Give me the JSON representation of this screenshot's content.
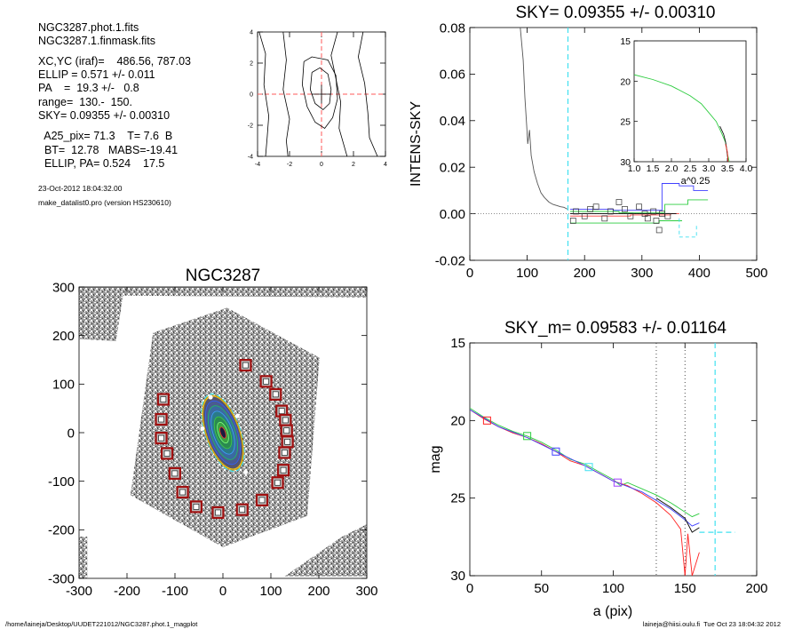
{
  "info_panel": {
    "lines": [
      "NGC3287.phot.1.fits",
      "NGC3287.1.finmask.fits",
      "XC,YC (iraf)=    486.56, 787.03",
      "ELLIP = 0.571 +/- 0.011",
      "PA    =  19.3 +/-   0.8",
      "range=  130.-  150.",
      "SKY= 0.09355 +/- 0.00310",
      "  A25_pix= 71.3    T= 7.6  B",
      "  BT=  12.78   MABS=-19.41",
      "  ELLIP, PA= 0.524    17.5"
    ],
    "date": "23-Oct-2012 18:04:32.00",
    "program": "make_datalist0.pro (version HS230610)"
  },
  "footer": {
    "left": "/home/laineja/Desktop/UUDET221012/NGC3287.phot.1_magplot",
    "right": "laineja@hiisi.oulu.fi  Tue Oct 23 18:04:32 2012"
  },
  "colors": {
    "axis": "#000000",
    "red_dash": "#ff5a5a",
    "cyan_dash": "#40e0f0",
    "green": "#2ecc40",
    "blue": "#4040ff",
    "red": "#ff2020",
    "violet": "#a040ff",
    "gray_curve": "#555555",
    "mask_box": "#a01010"
  },
  "chart_data": [
    {
      "id": "contour",
      "type": "contour",
      "title": "",
      "xlim": [
        -4,
        4
      ],
      "ylim": [
        -4,
        4
      ],
      "x_ticks": [
        "-4",
        "-2",
        "0",
        "2",
        "4"
      ],
      "y_ticks": [
        "-4",
        "-2",
        "0",
        "2",
        "4"
      ],
      "center": [
        0,
        0
      ],
      "contours": [
        [
          [
            -3.9,
            4
          ],
          [
            -3.5,
            2.6
          ],
          [
            -3.6,
            0.6
          ],
          [
            -3.3,
            -1.4
          ],
          [
            -3.4,
            -2.8
          ],
          [
            -3.5,
            -4
          ]
        ],
        [
          [
            -2.4,
            4
          ],
          [
            -2.2,
            2.2
          ],
          [
            -2.4,
            0.3
          ],
          [
            -2.0,
            -1.6
          ],
          [
            -2.2,
            -3.0
          ],
          [
            -2.1,
            -4
          ]
        ],
        [
          [
            1.0,
            4
          ],
          [
            0.6,
            2.5
          ],
          [
            0.9,
            1.0
          ],
          [
            1.2,
            -0.5
          ],
          [
            1.1,
            -2.2
          ],
          [
            1.6,
            -4
          ]
        ],
        [
          [
            2.6,
            4
          ],
          [
            2.3,
            2.4
          ],
          [
            2.7,
            0.7
          ],
          [
            2.9,
            -1.2
          ],
          [
            3.0,
            -2.8
          ],
          [
            3.5,
            -4
          ]
        ],
        [
          [
            -1.1,
            2.1
          ],
          [
            -0.6,
            2.4
          ],
          [
            0.4,
            2.2
          ],
          [
            0.9,
            1.2
          ],
          [
            1.0,
            -0.3
          ],
          [
            0.7,
            -1.5
          ],
          [
            0.2,
            -2.2
          ],
          [
            -0.4,
            -1.8
          ],
          [
            -0.9,
            -0.8
          ],
          [
            -1.2,
            0.6
          ],
          [
            -1.1,
            2.1
          ]
        ],
        [
          [
            -0.6,
            1.4
          ],
          [
            -0.1,
            1.7
          ],
          [
            0.4,
            1.3
          ],
          [
            0.6,
            0.3
          ],
          [
            0.5,
            -0.6
          ],
          [
            0.1,
            -1.0
          ],
          [
            -0.4,
            -0.6
          ],
          [
            -0.7,
            0.3
          ],
          [
            -0.6,
            1.4
          ]
        ]
      ]
    },
    {
      "id": "sky",
      "type": "line",
      "title": "SKY= 0.09355 +/- 0.00310",
      "xlabel": "",
      "ylabel": "INTENS-SKY",
      "xlim": [
        0,
        500
      ],
      "ylim": [
        -0.02,
        0.08
      ],
      "x_ticks": [
        "0",
        "100",
        "200",
        "300",
        "400",
        "500"
      ],
      "y_ticks": [
        "-0.02",
        "0.00",
        "0.02",
        "0.04",
        "0.06",
        "0.08"
      ],
      "x_tick_values": [
        0,
        100,
        200,
        300,
        400,
        500
      ],
      "y_tick_values": [
        -0.02,
        0,
        0.02,
        0.04,
        0.06,
        0.08
      ],
      "zero_line": 0,
      "vline": 171,
      "profile": [
        [
          88,
          0.08
        ],
        [
          93,
          0.066
        ],
        [
          96,
          0.05
        ],
        [
          99,
          0.038
        ],
        [
          101,
          0.03
        ],
        [
          104,
          0.036
        ],
        [
          107,
          0.025
        ],
        [
          112,
          0.018
        ],
        [
          118,
          0.013
        ],
        [
          124,
          0.009
        ],
        [
          130,
          0.007
        ],
        [
          138,
          0.005
        ],
        [
          145,
          0.004
        ],
        [
          152,
          0.0035
        ],
        [
          158,
          0.003
        ],
        [
          164,
          0.0028
        ],
        [
          170,
          0.002
        ]
      ],
      "series": [
        {
          "name": "",
          "color": "#4040ff",
          "points": [
            [
              175,
              0.002
            ],
            [
              250,
              0.002
            ],
            [
              250,
              0.0015
            ],
            [
              335,
              0.0015
            ],
            [
              335,
              0.013
            ],
            [
              365,
              0.013
            ],
            [
              365,
              0.012
            ],
            [
              390,
              0.012
            ],
            [
              390,
              0.01
            ],
            [
              415,
              0.01
            ]
          ]
        },
        {
          "name": "",
          "color": "#2ecc40",
          "points": [
            [
              175,
              0.001
            ],
            [
              260,
              0.001
            ],
            [
              260,
              0.0005
            ],
            [
              340,
              0.0005
            ],
            [
              340,
              0.004
            ],
            [
              380,
              0.004
            ],
            [
              380,
              0.006
            ],
            [
              415,
              0.006
            ]
          ]
        },
        {
          "name": "",
          "color": "#ff4040",
          "points": [
            [
              175,
              -0.001
            ],
            [
              280,
              -0.001
            ],
            [
              280,
              -0.0005
            ],
            [
              350,
              -0.0005
            ],
            [
              350,
              0.0
            ],
            [
              365,
              0.0
            ]
          ]
        },
        {
          "name": "",
          "color": "#2ecc40",
          "points": [
            [
              175,
              -0.004
            ],
            [
              330,
              -0.004
            ],
            [
              330,
              -0.003
            ],
            [
              370,
              -0.003
            ]
          ]
        },
        {
          "name": "",
          "color": "#000000",
          "points": [
            [
              175,
              0.0
            ],
            [
              360,
              0.0
            ]
          ]
        },
        {
          "name": "",
          "color": "#40e0f0",
          "dashed": true,
          "points": [
            [
              365,
              -0.002
            ],
            [
              365,
              -0.01
            ],
            [
              395,
              -0.01
            ],
            [
              395,
              -0.005
            ]
          ]
        }
      ],
      "squares": [
        [
          185,
          0.001
        ],
        [
          200,
          -0.001
        ],
        [
          210,
          0.002
        ],
        [
          220,
          0.003
        ],
        [
          235,
          -0.002
        ],
        [
          245,
          0.001
        ],
        [
          260,
          0.005
        ],
        [
          270,
          0.002
        ],
        [
          280,
          -0.001
        ],
        [
          295,
          0.003
        ],
        [
          305,
          0.0
        ],
        [
          310,
          -0.002
        ],
        [
          320,
          0.001
        ],
        [
          325,
          -0.003
        ],
        [
          330,
          -0.007
        ],
        [
          335,
          0.0
        ],
        [
          345,
          -0.001
        ],
        [
          180,
          -0.003
        ]
      ],
      "inset": {
        "xlim": [
          1.0,
          4.0
        ],
        "ylim": [
          15,
          30
        ],
        "x_ticks": [
          "1.0",
          "1.5",
          "2.0",
          "2.5",
          "3.0",
          "3.5",
          "4.0"
        ],
        "y_ticks": [
          "15",
          "20",
          "25",
          "30"
        ],
        "xlabel": "a^0.25",
        "curve": [
          [
            1.0,
            19.2
          ],
          [
            1.5,
            19.8
          ],
          [
            2.0,
            20.6
          ],
          [
            2.5,
            21.8
          ],
          [
            2.8,
            22.8
          ],
          [
            3.0,
            23.9
          ],
          [
            3.2,
            25.0
          ],
          [
            3.35,
            26.5
          ],
          [
            3.45,
            27.6
          ],
          [
            3.5,
            29.0
          ],
          [
            3.55,
            30
          ]
        ]
      }
    },
    {
      "id": "image",
      "type": "image",
      "title": "NGC3287",
      "xlim": [
        -350,
        350
      ],
      "ylim": [
        -350,
        350
      ],
      "x_ticks": [
        "-300",
        "-200",
        "-100",
        "0",
        "100",
        "200",
        "300"
      ],
      "y_ticks": [
        "-300",
        "-200",
        "-100",
        "0",
        "100",
        "200",
        "300"
      ],
      "tick_values": [
        -300,
        -200,
        -100,
        0,
        100,
        200,
        300
      ],
      "galaxy": {
        "center": [
          0,
          0
        ],
        "semi_major": 88,
        "axis_ratio": 0.43,
        "pa_deg": 19.3
      },
      "mask_boxes": [
        [
          55,
          162
        ],
        [
          105,
          123
        ],
        [
          128,
          92
        ],
        [
          143,
          52
        ],
        [
          152,
          30
        ],
        [
          155,
          5
        ],
        [
          157,
          -22
        ],
        [
          150,
          -48
        ],
        [
          147,
          -90
        ],
        [
          133,
          -120
        ],
        [
          95,
          -162
        ],
        [
          47,
          -185
        ],
        [
          -12,
          -192
        ],
        [
          -65,
          -178
        ],
        [
          -98,
          -143
        ],
        [
          -117,
          -98
        ],
        [
          -136,
          -50
        ],
        [
          -150,
          -13
        ],
        [
          -150,
          32
        ],
        [
          -145,
          80
        ]
      ]
    },
    {
      "id": "mag",
      "type": "line",
      "title": "SKY_m=  0.09583 +/- 0.01164",
      "xlabel": "a (pix)",
      "ylabel": "mag",
      "xlim": [
        0,
        200
      ],
      "ylim": [
        30,
        15
      ],
      "x_ticks": [
        "0",
        "50",
        "100",
        "150",
        "200"
      ],
      "y_ticks": [
        "15",
        "20",
        "25",
        "30"
      ],
      "x_tick_values": [
        0,
        50,
        100,
        150,
        200
      ],
      "y_tick_values": [
        15,
        20,
        25,
        30
      ],
      "vlines_dotted": [
        130,
        150
      ],
      "vline_cyan": 171,
      "series": [
        {
          "name": "",
          "color": "#2ecc40",
          "points": [
            [
              0,
              19.2
            ],
            [
              10,
              19.8
            ],
            [
              20,
              20.3
            ],
            [
              30,
              20.7
            ],
            [
              40,
              21.0
            ],
            [
              50,
              21.4
            ],
            [
              60,
              21.9
            ],
            [
              70,
              22.5
            ],
            [
              80,
              22.8
            ],
            [
              90,
              23.3
            ],
            [
              100,
              23.8
            ],
            [
              105,
              24.2
            ],
            [
              110,
              24.0
            ],
            [
              120,
              24.4
            ],
            [
              130,
              24.8
            ],
            [
              140,
              25.3
            ],
            [
              145,
              25.6
            ],
            [
              150,
              25.9
            ],
            [
              155,
              26.2
            ],
            [
              160,
              26.0
            ]
          ]
        },
        {
          "name": "",
          "color": "#ff2020",
          "points": [
            [
              0,
              19.3
            ],
            [
              10,
              19.9
            ],
            [
              20,
              20.4
            ],
            [
              30,
              20.8
            ],
            [
              40,
              21.1
            ],
            [
              50,
              21.5
            ],
            [
              60,
              22.0
            ],
            [
              70,
              22.6
            ],
            [
              80,
              22.9
            ],
            [
              90,
              23.4
            ],
            [
              100,
              23.9
            ],
            [
              110,
              24.2
            ],
            [
              120,
              24.7
            ],
            [
              130,
              25.3
            ],
            [
              140,
              26.1
            ],
            [
              147,
              27.0
            ],
            [
              150,
              30
            ],
            [
              152,
              27.3
            ],
            [
              155,
              30
            ],
            [
              160,
              28.5
            ]
          ]
        },
        {
          "name": "",
          "color": "#4040ff",
          "points": [
            [
              0,
              19.3
            ],
            [
              20,
              20.4
            ],
            [
              40,
              21.1
            ],
            [
              60,
              22.0
            ],
            [
              80,
              22.9
            ],
            [
              100,
              23.9
            ],
            [
              120,
              24.6
            ],
            [
              140,
              25.7
            ],
            [
              150,
              26.4
            ],
            [
              155,
              26.8
            ],
            [
              160,
              26.6
            ]
          ]
        },
        {
          "name": "",
          "color": "#000000",
          "points": [
            [
              130,
              25.0
            ],
            [
              140,
              25.6
            ],
            [
              150,
              26.3
            ],
            [
              155,
              27.2
            ],
            [
              160,
              26.9
            ]
          ]
        }
      ],
      "squares": [
        {
          "x": 12,
          "y": 20.0,
          "color": "#ff2020"
        },
        {
          "x": 40,
          "y": 21.0,
          "color": "#2ecc40"
        },
        {
          "x": 60,
          "y": 22.0,
          "color": "#4040ff"
        },
        {
          "x": 83,
          "y": 23.0,
          "color": "#40e0f0"
        },
        {
          "x": 103,
          "y": 24.0,
          "color": "#a040ff"
        }
      ],
      "cyan_step": [
        [
          160,
          27.2
        ],
        [
          168,
          27.2
        ],
        [
          168,
          27.2
        ],
        [
          185,
          27.2
        ]
      ]
    }
  ]
}
